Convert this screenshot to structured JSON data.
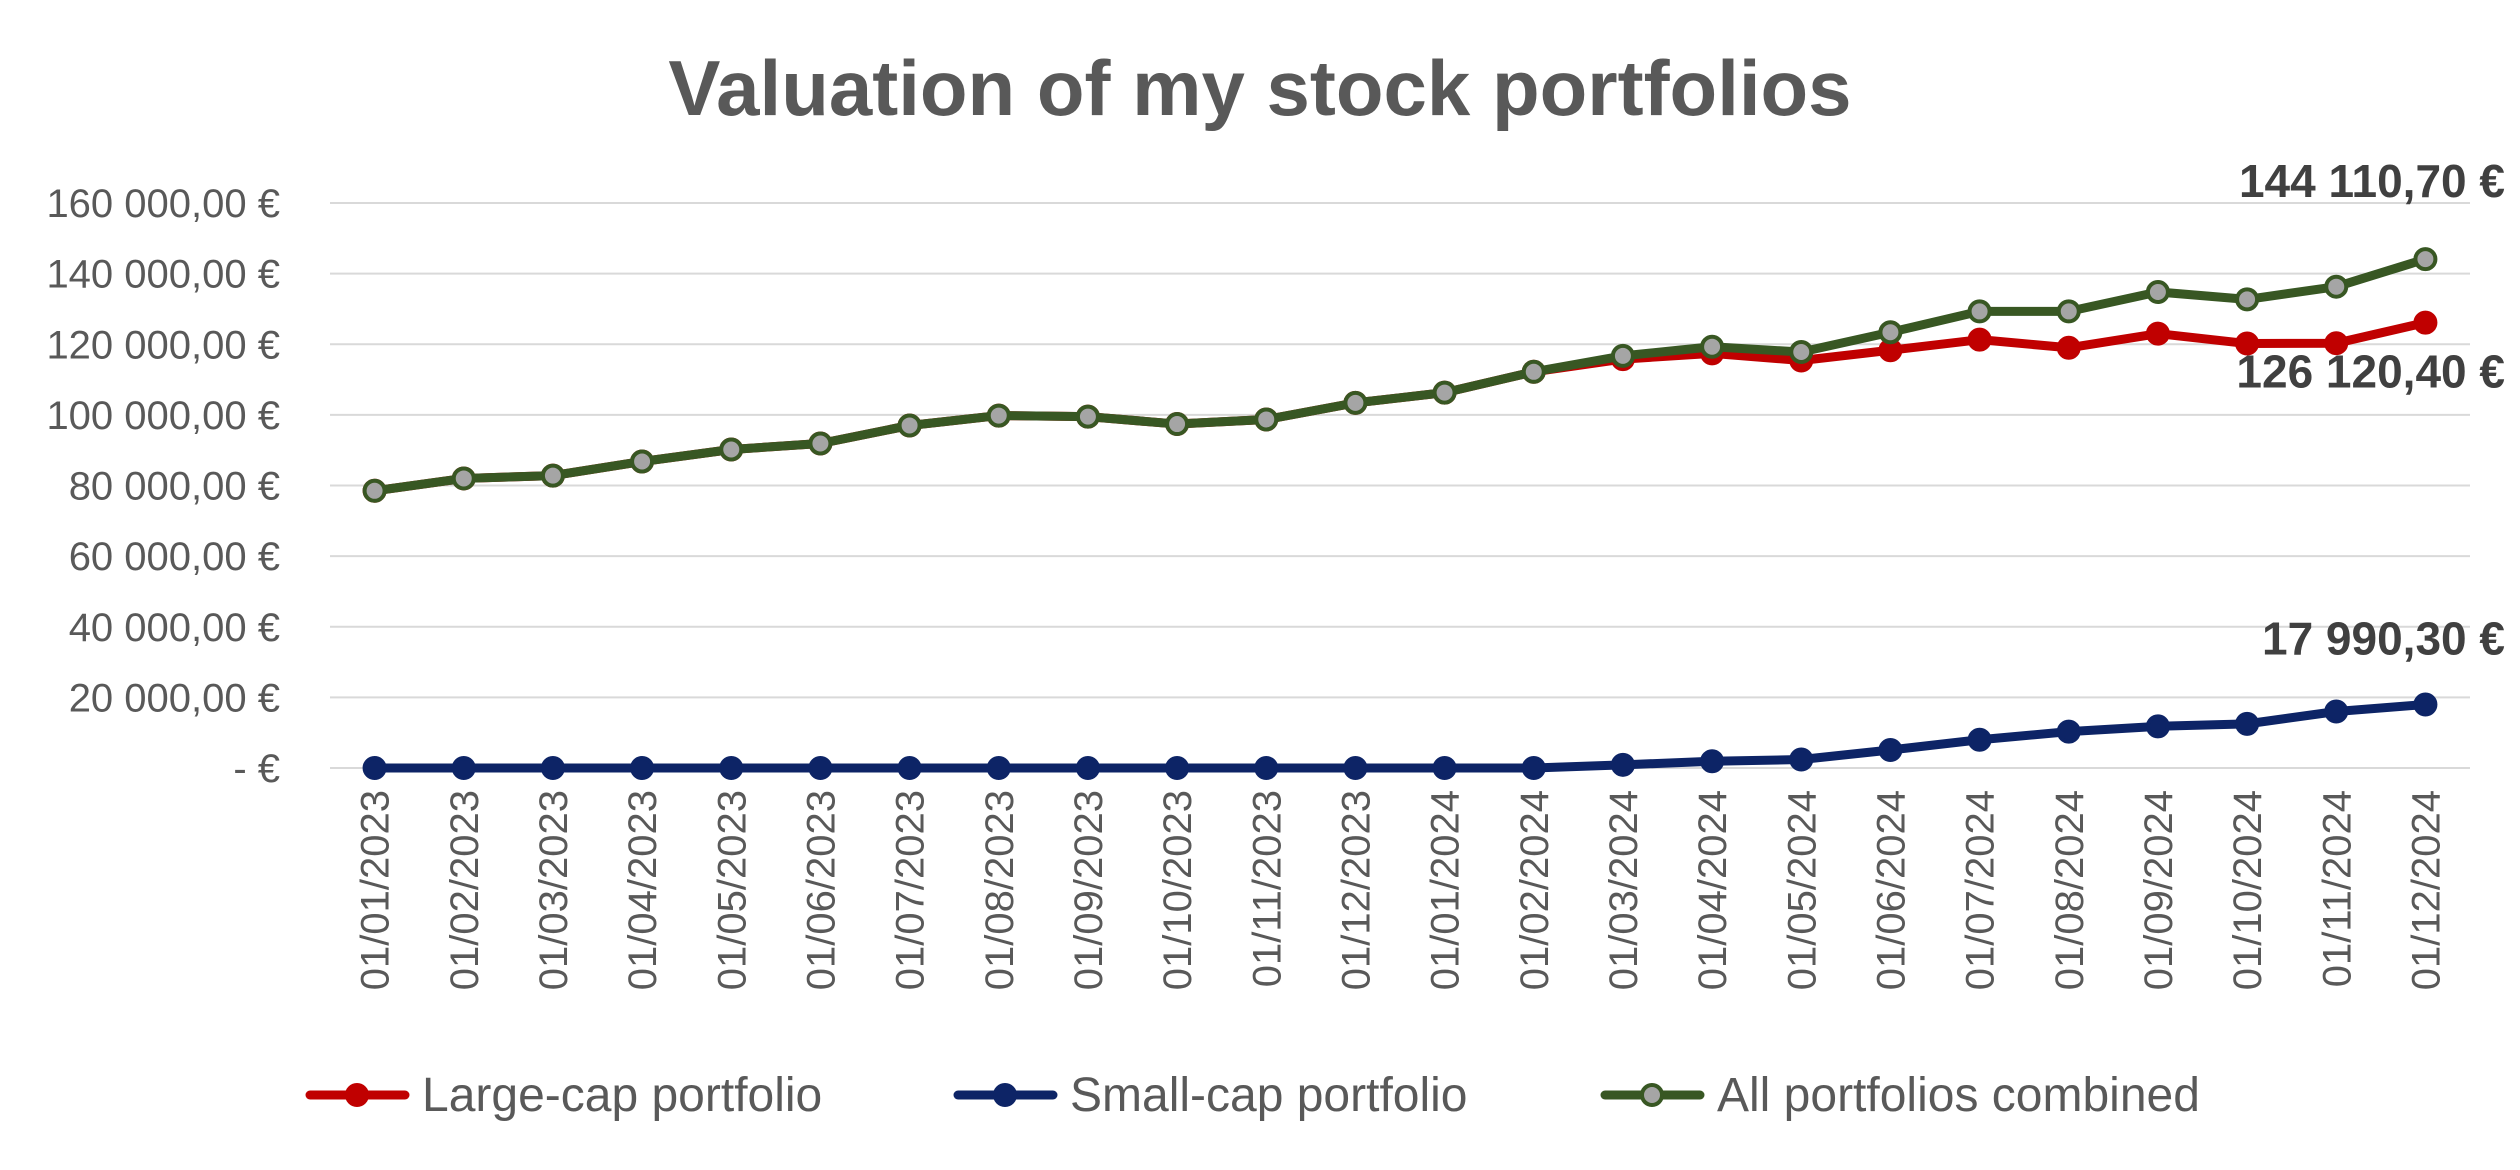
{
  "chart_data": {
    "type": "line",
    "title": "Valuation of my stock portfolios",
    "xlabel": "",
    "ylabel": "",
    "ylim": [
      0,
      160000
    ],
    "y_ticks": [
      0,
      20000,
      40000,
      60000,
      80000,
      100000,
      120000,
      140000,
      160000
    ],
    "y_tick_labels": [
      "-  €",
      "20 000,00 €",
      "40 000,00 €",
      "60 000,00 €",
      "80 000,00 €",
      "100 000,00 €",
      "120 000,00 €",
      "140 000,00 €",
      "160 000,00 €"
    ],
    "grid": true,
    "legend_position": "bottom",
    "categories": [
      "01/01/2023",
      "01/02/2023",
      "01/03/2023",
      "01/04/2023",
      "01/05/2023",
      "01/06/2023",
      "01/07/2023",
      "01/08/2023",
      "01/09/2023",
      "01/10/2023",
      "01/11/2023",
      "01/12/2023",
      "01/01/2024",
      "01/02/2024",
      "01/03/2024",
      "01/04/2024",
      "01/05/2024",
      "01/06/2024",
      "01/07/2024",
      "01/08/2024",
      "01/09/2024",
      "01/10/2024",
      "01/11/2024",
      "01/12/2024"
    ],
    "series": [
      {
        "name": "Large-cap portfolio",
        "color": "#C00000",
        "marker_fill": "#C00000",
        "values": [
          78500,
          82000,
          82800,
          86800,
          90200,
          91900,
          97000,
          99800,
          99500,
          97400,
          98700,
          103400,
          106300,
          112200,
          115800,
          117400,
          115400,
          118300,
          121300,
          119000,
          123000,
          120200,
          120300,
          126120.4
        ]
      },
      {
        "name": "Small-cap portfolio",
        "color": "#0D2466",
        "marker_fill": "#0D2466",
        "values": [
          0,
          0,
          0,
          0,
          0,
          0,
          0,
          0,
          0,
          0,
          0,
          0,
          0,
          0,
          900,
          1900,
          2400,
          5100,
          8000,
          10300,
          11800,
          12500,
          16000,
          17990.3
        ]
      },
      {
        "name": "All portfolios combined",
        "color": "#385723",
        "marker_fill": "#A5A5A5",
        "values": [
          78500,
          82000,
          82800,
          86800,
          90200,
          91900,
          97000,
          99800,
          99500,
          97400,
          98700,
          103400,
          106300,
          112200,
          116700,
          119300,
          117800,
          123400,
          129300,
          129300,
          134800,
          132700,
          136300,
          144110.7
        ]
      }
    ],
    "end_labels": [
      {
        "series": "All portfolios combined",
        "text": "144 110,70 €"
      },
      {
        "series": "Large-cap portfolio",
        "text": "126 120,40 €"
      },
      {
        "series": "Small-cap portfolio",
        "text": "17 990,30 €"
      }
    ]
  }
}
